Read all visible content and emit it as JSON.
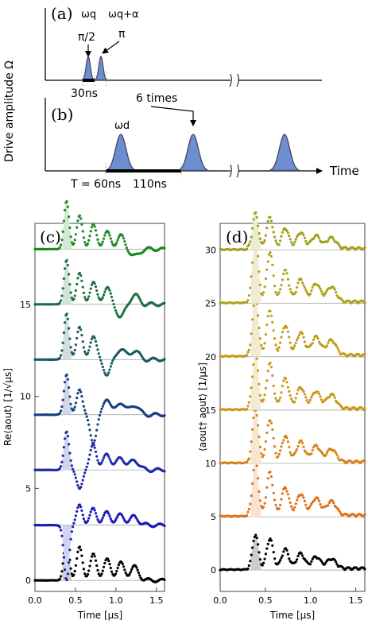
{
  "schematic": {
    "ylabel": "Drive amplitude Ω",
    "xlabel": "Time",
    "panel_a": {
      "label": "(a)",
      "omega_q": "ωq",
      "omega_q_alpha": "ωq+α",
      "pi_half": "π/2",
      "pi": "π",
      "duration": "30ns"
    },
    "panel_b": {
      "label": "(b)",
      "omega_d": "ωd",
      "repeat": "6 times",
      "period": "T = 60ns",
      "gap": "110ns"
    }
  },
  "chart_data": [
    {
      "type": "scatter",
      "panel": "(c)",
      "ylabel": "Re⟨aout⟩ [1/√μs]",
      "xlabel": "Time [μs]",
      "xlim": [
        0.0,
        1.6
      ],
      "ylim": [
        -0.6,
        19.4
      ],
      "xticks": [
        "0.0",
        "0.5",
        "1.0",
        "1.5"
      ],
      "yticks": [
        "0",
        "5",
        "10",
        "15"
      ],
      "ytick_values": [
        0,
        5,
        10,
        15
      ],
      "series": [
        {
          "offset": 0,
          "color": "#000000",
          "amps": [
            2.5,
            1.8,
            1.4,
            1.1,
            0.9,
            0.7
          ]
        },
        {
          "offset": 3,
          "color": "#1a1ab5",
          "amps": [
            -3.0,
            1.1,
            0.9,
            0.7,
            0.55,
            0.45
          ]
        },
        {
          "offset": 6,
          "color": "#1c2aa8",
          "amps": [
            2.1,
            -1.0,
            1.4,
            0.9,
            0.7,
            0.55
          ]
        },
        {
          "offset": 9,
          "color": "#163e82",
          "amps": [
            2.2,
            1.4,
            -1.5,
            0.9,
            0.7,
            0.55
          ]
        },
        {
          "offset": 12,
          "color": "#1b5a61",
          "amps": [
            2.5,
            1.8,
            1.3,
            -0.8,
            0.6,
            0.5
          ]
        },
        {
          "offset": 15,
          "color": "#1a6e40",
          "amps": [
            2.4,
            1.7,
            1.2,
            0.9,
            -0.7,
            0.5
          ]
        },
        {
          "offset": 18,
          "color": "#1a8a20",
          "amps": [
            2.6,
            1.8,
            1.3,
            0.9,
            0.7,
            -0.4
          ]
        }
      ]
    },
    {
      "type": "scatter",
      "panel": "(d)",
      "ylabel": "⟨aout† aout⟩ [1/μs]",
      "xlabel": "Time [μs]",
      "xlim": [
        0.0,
        1.6
      ],
      "ylim": [
        -2,
        32.5
      ],
      "xticks": [
        "0.0",
        "0.5",
        "1.0",
        "1.5"
      ],
      "yticks": [
        "0",
        "5",
        "10",
        "15",
        "20",
        "25",
        "30"
      ],
      "ytick_values": [
        0,
        5,
        10,
        15,
        20,
        25,
        30
      ],
      "series": [
        {
          "offset": 0,
          "color": "#000000",
          "amps": [
            3.2,
            2.8,
            1.8,
            1.4,
            1.1,
            0.9
          ]
        },
        {
          "offset": 5,
          "color": "#e0701a",
          "amps": [
            5.2,
            4.0,
            2.6,
            2.0,
            1.6,
            1.3
          ]
        },
        {
          "offset": 10,
          "color": "#d68418",
          "amps": [
            5.0,
            4.0,
            2.4,
            1.9,
            1.5,
            1.2
          ]
        },
        {
          "offset": 15,
          "color": "#cc9617",
          "amps": [
            5.2,
            4.2,
            2.8,
            2.0,
            1.6,
            1.3
          ]
        },
        {
          "offset": 20,
          "color": "#bf9c17",
          "amps": [
            5.6,
            4.2,
            2.8,
            2.1,
            1.7,
            1.4
          ]
        },
        {
          "offset": 25,
          "color": "#b0a218",
          "amps": [
            6.2,
            4.6,
            2.9,
            2.1,
            1.7,
            1.4
          ]
        },
        {
          "offset": 30,
          "color": "#a0a01a",
          "amps": [
            3.3,
            2.9,
            1.9,
            1.5,
            1.2,
            1.0
          ]
        }
      ]
    }
  ]
}
